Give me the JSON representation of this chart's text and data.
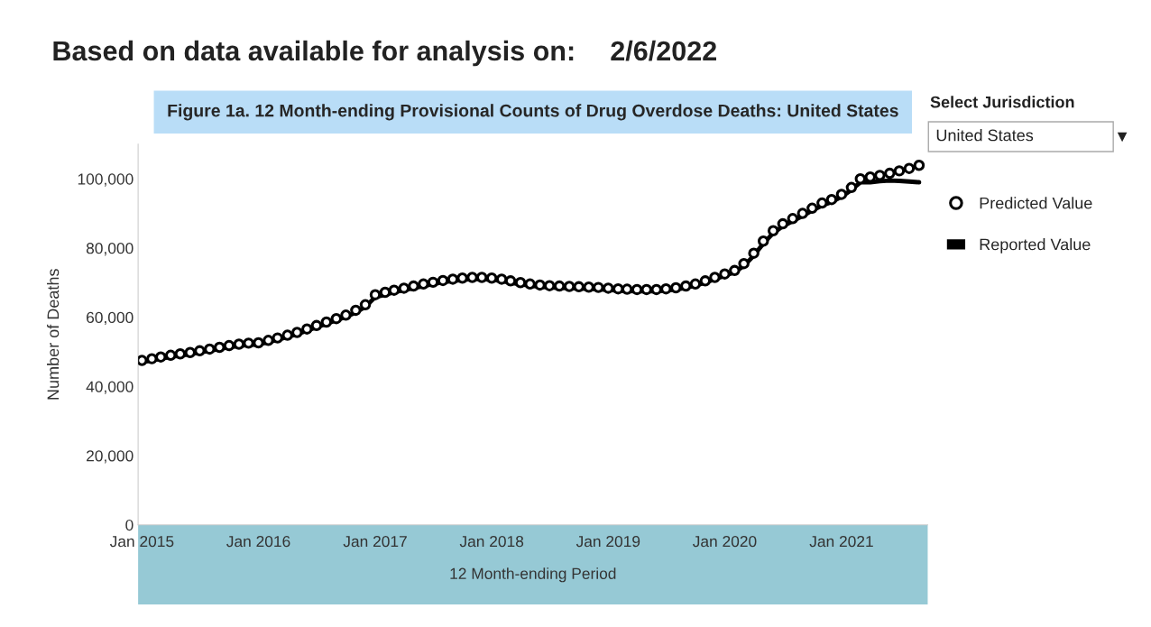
{
  "chart_data": {
    "type": "line",
    "title": "Figure 1a. 12 Month-ending Provisional Counts of Drug Overdose Deaths: United States",
    "xlabel": "12 Month-ending Period",
    "ylabel": "Number of Deaths",
    "annotations": [
      "Based on data available for analysis on:",
      "2/6/2022",
      "Select Jurisdiction",
      "United States"
    ],
    "x": [
      "2015-01",
      "2015-02",
      "2015-03",
      "2015-04",
      "2015-05",
      "2015-06",
      "2015-07",
      "2015-08",
      "2015-09",
      "2015-10",
      "2015-11",
      "2015-12",
      "2016-01",
      "2016-02",
      "2016-03",
      "2016-04",
      "2016-05",
      "2016-06",
      "2016-07",
      "2016-08",
      "2016-09",
      "2016-10",
      "2016-11",
      "2016-12",
      "2017-01",
      "2017-02",
      "2017-03",
      "2017-04",
      "2017-05",
      "2017-06",
      "2017-07",
      "2017-08",
      "2017-09",
      "2017-10",
      "2017-11",
      "2017-12",
      "2018-01",
      "2018-02",
      "2018-03",
      "2018-04",
      "2018-05",
      "2018-06",
      "2018-07",
      "2018-08",
      "2018-09",
      "2018-10",
      "2018-11",
      "2018-12",
      "2019-01",
      "2019-02",
      "2019-03",
      "2019-04",
      "2019-05",
      "2019-06",
      "2019-07",
      "2019-08",
      "2019-09",
      "2019-10",
      "2019-11",
      "2019-12",
      "2020-01",
      "2020-02",
      "2020-03",
      "2020-04",
      "2020-05",
      "2020-06",
      "2020-07",
      "2020-08",
      "2020-09",
      "2020-10",
      "2020-11",
      "2020-12",
      "2021-01",
      "2021-02",
      "2021-03",
      "2021-04",
      "2021-05",
      "2021-06",
      "2021-07",
      "2021-08",
      "2021-09"
    ],
    "series": [
      {
        "name": "Predicted Value",
        "type": "scatter",
        "marker": "circle",
        "color": "#000000",
        "values": [
          47500,
          48000,
          48500,
          49000,
          49400,
          49800,
          50300,
          50800,
          51300,
          51800,
          52200,
          52500,
          52600,
          53300,
          54000,
          54800,
          55600,
          56600,
          57600,
          58600,
          59600,
          60600,
          62000,
          63600,
          66500,
          67200,
          67800,
          68400,
          69000,
          69600,
          70100,
          70600,
          71000,
          71300,
          71500,
          71500,
          71300,
          71000,
          70500,
          70000,
          69600,
          69300,
          69100,
          69000,
          68900,
          68800,
          68700,
          68600,
          68400,
          68200,
          68100,
          68000,
          68000,
          68000,
          68200,
          68500,
          69000,
          69600,
          70500,
          71500,
          72500,
          73500,
          75500,
          78500,
          82000,
          85000,
          87000,
          88500,
          90000,
          91500,
          93000,
          94000,
          95500,
          97500,
          100000,
          100500,
          101000,
          101600,
          102300,
          103000,
          103900
        ]
      },
      {
        "name": "Reported Value",
        "marker": "none",
        "line_style": "solid",
        "color": "#000000",
        "values": [
          47000,
          47500,
          48000,
          48500,
          48900,
          49300,
          49800,
          50300,
          50800,
          51300,
          51700,
          52000,
          52100,
          52800,
          53500,
          54300,
          55100,
          56100,
          57100,
          58100,
          59100,
          60100,
          61400,
          63000,
          65800,
          66500,
          67200,
          67800,
          68400,
          69000,
          69600,
          70100,
          70500,
          70800,
          71000,
          71000,
          70800,
          70500,
          70000,
          69500,
          69100,
          68800,
          68600,
          68500,
          68400,
          68300,
          68200,
          68100,
          67900,
          67700,
          67600,
          67500,
          67500,
          67500,
          67700,
          68000,
          68500,
          69100,
          70000,
          71000,
          72000,
          73000,
          74800,
          77800,
          81300,
          84300,
          86300,
          87800,
          89300,
          90800,
          92300,
          93300,
          94800,
          96800,
          99000,
          99000,
          99300,
          99500,
          99400,
          99200,
          99000
        ]
      }
    ],
    "xlim": [
      "2014-12-20",
      "2021-09-28"
    ],
    "xticks": [
      {
        "value": "2015-01",
        "label": "Jan 2015"
      },
      {
        "value": "2016-01",
        "label": "Jan 2016"
      },
      {
        "value": "2017-01",
        "label": "Jan 2017"
      },
      {
        "value": "2018-01",
        "label": "Jan 2018"
      },
      {
        "value": "2019-01",
        "label": "Jan 2019"
      },
      {
        "value": "2020-01",
        "label": "Jan 2020"
      },
      {
        "value": "2021-01",
        "label": "Jan 2021"
      }
    ],
    "ylim": [
      0,
      110000
    ],
    "yticks": [
      0,
      {
        "value": 20000,
        "label": "20,000"
      },
      {
        "value": 40000,
        "label": "40,000"
      },
      {
        "value": 60000,
        "label": "60,000"
      },
      {
        "value": 80000,
        "label": "80,000"
      },
      {
        "value": 100000,
        "label": "100,000"
      }
    ],
    "grid": false,
    "legend": "right"
  }
}
